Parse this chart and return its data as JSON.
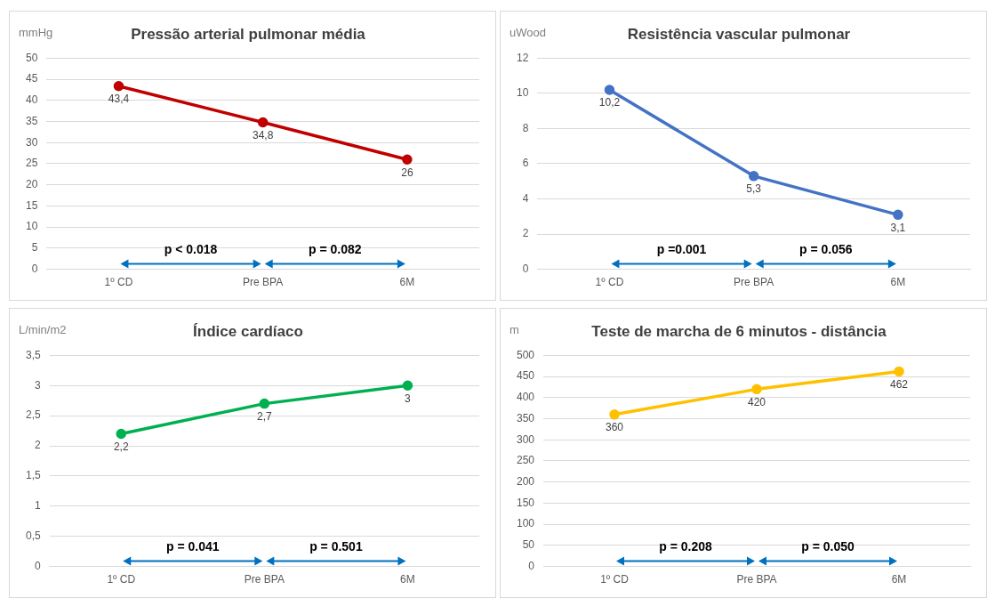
{
  "chart_data": [
    {
      "type": "line",
      "title": "Pressão arterial pulmonar média",
      "ylabel": "mmHg",
      "categories": [
        "1º CD",
        "Pre BPA",
        "6M"
      ],
      "series": [
        {
          "color": "#c00000",
          "values": [
            43.4,
            34.8,
            26
          ],
          "value_labels": [
            "43,4",
            "34,8",
            "26"
          ]
        }
      ],
      "ylim": [
        0,
        50
      ],
      "yticks": [
        0,
        5,
        10,
        15,
        20,
        25,
        30,
        35,
        40,
        45,
        50
      ],
      "grid": "y",
      "legend": false,
      "marker": "circle",
      "annotations": [
        "p < 0.018",
        "p = 0.082"
      ]
    },
    {
      "type": "line",
      "title": "Resistência vascular pulmonar",
      "ylabel": "uWood",
      "categories": [
        "1º CD",
        "Pre BPA",
        "6M"
      ],
      "series": [
        {
          "color": "#4472c4",
          "values": [
            10.2,
            5.3,
            3.1
          ],
          "value_labels": [
            "10,2",
            "5,3",
            "3,1"
          ]
        }
      ],
      "ylim": [
        0,
        12
      ],
      "yticks": [
        0,
        2,
        4,
        6,
        8,
        10,
        12
      ],
      "grid": "y",
      "legend": false,
      "marker": "circle",
      "annotations": [
        "p =0.001",
        "p = 0.056"
      ]
    },
    {
      "type": "line",
      "title": "Índice cardíaco",
      "ylabel": "L/min/m2",
      "categories": [
        "1º CD",
        "Pre BPA",
        "6M"
      ],
      "series": [
        {
          "color": "#00b050",
          "values": [
            2.2,
            2.7,
            3
          ],
          "value_labels": [
            "2,2",
            "2,7",
            "3"
          ]
        }
      ],
      "ylim": [
        0,
        3.5
      ],
      "yticks": [
        0,
        {
          "value": 0.5,
          "label": "0,5"
        },
        1,
        {
          "value": 1.5,
          "label": "1,5"
        },
        2,
        {
          "value": 2.5,
          "label": "2,5"
        },
        3,
        {
          "value": 3.5,
          "label": "3,5"
        }
      ],
      "grid": "y",
      "legend": false,
      "marker": "circle",
      "annotations": [
        "p = 0.041",
        "p = 0.501"
      ]
    },
    {
      "type": "line",
      "title": "Teste de marcha de 6 minutos - distância",
      "ylabel": "m",
      "categories": [
        "1º CD",
        "Pre BPA",
        "6M"
      ],
      "series": [
        {
          "color": "#ffc000",
          "values": [
            360,
            420,
            462
          ],
          "value_labels": [
            "360",
            "420",
            "462"
          ]
        }
      ],
      "ylim": [
        0,
        500
      ],
      "yticks": [
        0,
        50,
        100,
        150,
        200,
        250,
        300,
        350,
        400,
        450,
        500
      ],
      "grid": "y",
      "legend": false,
      "marker": "circle",
      "annotations": [
        "p = 0.208",
        "p = 0.050"
      ]
    }
  ]
}
